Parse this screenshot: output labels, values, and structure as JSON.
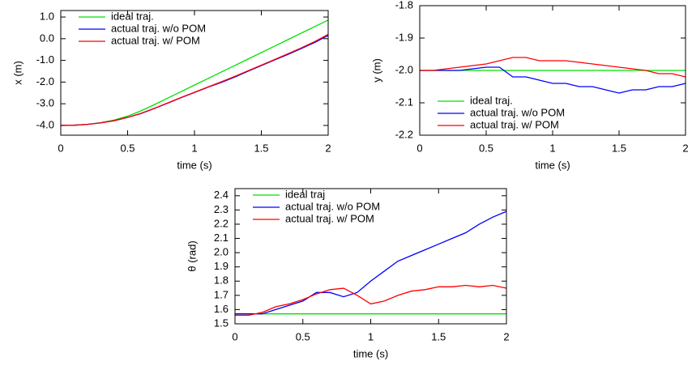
{
  "chart_data": [
    {
      "type": "line",
      "xlabel": "time (s)",
      "ylabel": "x (m)",
      "legend": "top-left",
      "xlim": [
        0,
        2
      ],
      "ylim": [
        -4.45,
        1.3
      ],
      "xticks": [
        0,
        0.5,
        1,
        1.5,
        2
      ],
      "yticks": [
        {
          "value": 1,
          "label": "1.0"
        },
        {
          "value": 0,
          "label": "0.0"
        },
        {
          "value": -1,
          "label": "-1.0"
        },
        {
          "value": -2,
          "label": "-2.0"
        },
        {
          "value": -3,
          "label": "-3.0"
        },
        {
          "value": -4,
          "label": "-4.0"
        }
      ],
      "x": [
        0,
        0.1,
        0.2,
        0.3,
        0.4,
        0.5,
        0.6,
        0.7,
        0.8,
        0.9,
        1,
        1.1,
        1.2,
        1.3,
        1.4,
        1.5,
        1.6,
        1.7,
        1.8,
        1.9,
        2
      ],
      "series": [
        {
          "name": "ideal traj.",
          "color": "#00e000",
          "values": [
            -4.0,
            -3.99,
            -3.95,
            -3.87,
            -3.75,
            -3.57,
            -3.33,
            -3.04,
            -2.74,
            -2.44,
            -2.14,
            -1.84,
            -1.54,
            -1.24,
            -0.94,
            -0.64,
            -0.34,
            -0.04,
            0.26,
            0.56,
            0.86
          ]
        },
        {
          "name": "actual traj. w/o POM",
          "color": "#0000ff",
          "values": [
            -4.0,
            -3.99,
            -3.95,
            -3.88,
            -3.78,
            -3.63,
            -3.45,
            -3.22,
            -2.97,
            -2.72,
            -2.48,
            -2.24,
            -2.02,
            -1.77,
            -1.5,
            -1.24,
            -0.98,
            -0.72,
            -0.45,
            -0.17,
            0.15
          ]
        },
        {
          "name": "actual traj. w/ POM",
          "color": "#ff0000",
          "values": [
            -4.0,
            -3.99,
            -3.95,
            -3.88,
            -3.78,
            -3.63,
            -3.44,
            -3.21,
            -2.96,
            -2.71,
            -2.47,
            -2.23,
            -1.99,
            -1.74,
            -1.48,
            -1.22,
            -0.96,
            -0.69,
            -0.42,
            -0.13,
            0.2
          ]
        }
      ]
    },
    {
      "type": "line",
      "xlabel": "time (s)",
      "ylabel": "y (m)",
      "legend": "bottom-left",
      "xlim": [
        0,
        2
      ],
      "ylim": [
        -2.2,
        -1.8
      ],
      "xticks": [
        0,
        0.5,
        1,
        1.5,
        2
      ],
      "yticks": [
        -1.8,
        -1.9,
        {
          "value": -2,
          "label": "-2.0"
        },
        -2.1,
        -2.2
      ],
      "x": [
        0,
        0.1,
        0.2,
        0.3,
        0.4,
        0.5,
        0.6,
        0.7,
        0.8,
        0.9,
        1,
        1.1,
        1.2,
        1.3,
        1.4,
        1.5,
        1.6,
        1.7,
        1.8,
        1.9,
        2
      ],
      "series": [
        {
          "name": "ideal traj.",
          "color": "#00e000",
          "values": [
            -2,
            -2,
            -2,
            -2,
            -2,
            -2,
            -2,
            -2,
            -2,
            -2,
            -2,
            -2,
            -2,
            -2,
            -2,
            -2,
            -2,
            -2,
            -2,
            -2,
            -2
          ]
        },
        {
          "name": "actual traj. w/o POM",
          "color": "#0000ff",
          "values": [
            -2.0,
            -2.0,
            -2.0,
            -2.0,
            -1.995,
            -1.99,
            -1.99,
            -2.02,
            -2.02,
            -2.03,
            -2.04,
            -2.04,
            -2.05,
            -2.05,
            -2.06,
            -2.07,
            -2.06,
            -2.06,
            -2.05,
            -2.05,
            -2.04
          ]
        },
        {
          "name": "actual traj. w/ POM",
          "color": "#ff0000",
          "values": [
            -2.0,
            -2.0,
            -1.995,
            -1.99,
            -1.985,
            -1.98,
            -1.97,
            -1.96,
            -1.96,
            -1.97,
            -1.97,
            -1.97,
            -1.975,
            -1.98,
            -1.985,
            -1.99,
            -1.995,
            -2.0,
            -2.01,
            -2.01,
            -2.02
          ]
        }
      ]
    },
    {
      "type": "line",
      "xlabel": "time (s)",
      "ylabel": "θ (rad)",
      "legend": "top-left",
      "xlim": [
        0,
        2
      ],
      "ylim": [
        1.5,
        2.45
      ],
      "xticks": [
        0,
        0.5,
        1,
        1.5,
        2
      ],
      "yticks": [
        2.4,
        2.3,
        2.2,
        2.1,
        {
          "value": 2,
          "label": "2.0"
        },
        1.9,
        1.8,
        1.7,
        1.6,
        1.5
      ],
      "x": [
        0,
        0.1,
        0.2,
        0.3,
        0.4,
        0.5,
        0.6,
        0.7,
        0.8,
        0.9,
        1,
        1.1,
        1.2,
        1.3,
        1.4,
        1.5,
        1.6,
        1.7,
        1.8,
        1.9,
        2
      ],
      "series": [
        {
          "name": "ideal traj",
          "color": "#00e000",
          "values": [
            1.57,
            1.57,
            1.57,
            1.57,
            1.57,
            1.57,
            1.57,
            1.57,
            1.57,
            1.57,
            1.57,
            1.57,
            1.57,
            1.57,
            1.57,
            1.57,
            1.57,
            1.57,
            1.57,
            1.57,
            1.57
          ]
        },
        {
          "name": "actual traj. w/o POM",
          "color": "#0000ff",
          "values": [
            1.57,
            1.57,
            1.57,
            1.6,
            1.63,
            1.66,
            1.72,
            1.72,
            1.69,
            1.72,
            1.8,
            1.87,
            1.94,
            1.98,
            2.02,
            2.06,
            2.1,
            2.14,
            2.2,
            2.25,
            2.29
          ]
        },
        {
          "name": "actual traj. w/ POM",
          "color": "#ff0000",
          "values": [
            1.56,
            1.56,
            1.58,
            1.62,
            1.64,
            1.67,
            1.71,
            1.74,
            1.75,
            1.7,
            1.64,
            1.66,
            1.7,
            1.73,
            1.74,
            1.76,
            1.76,
            1.77,
            1.76,
            1.77,
            1.75
          ]
        }
      ]
    }
  ]
}
